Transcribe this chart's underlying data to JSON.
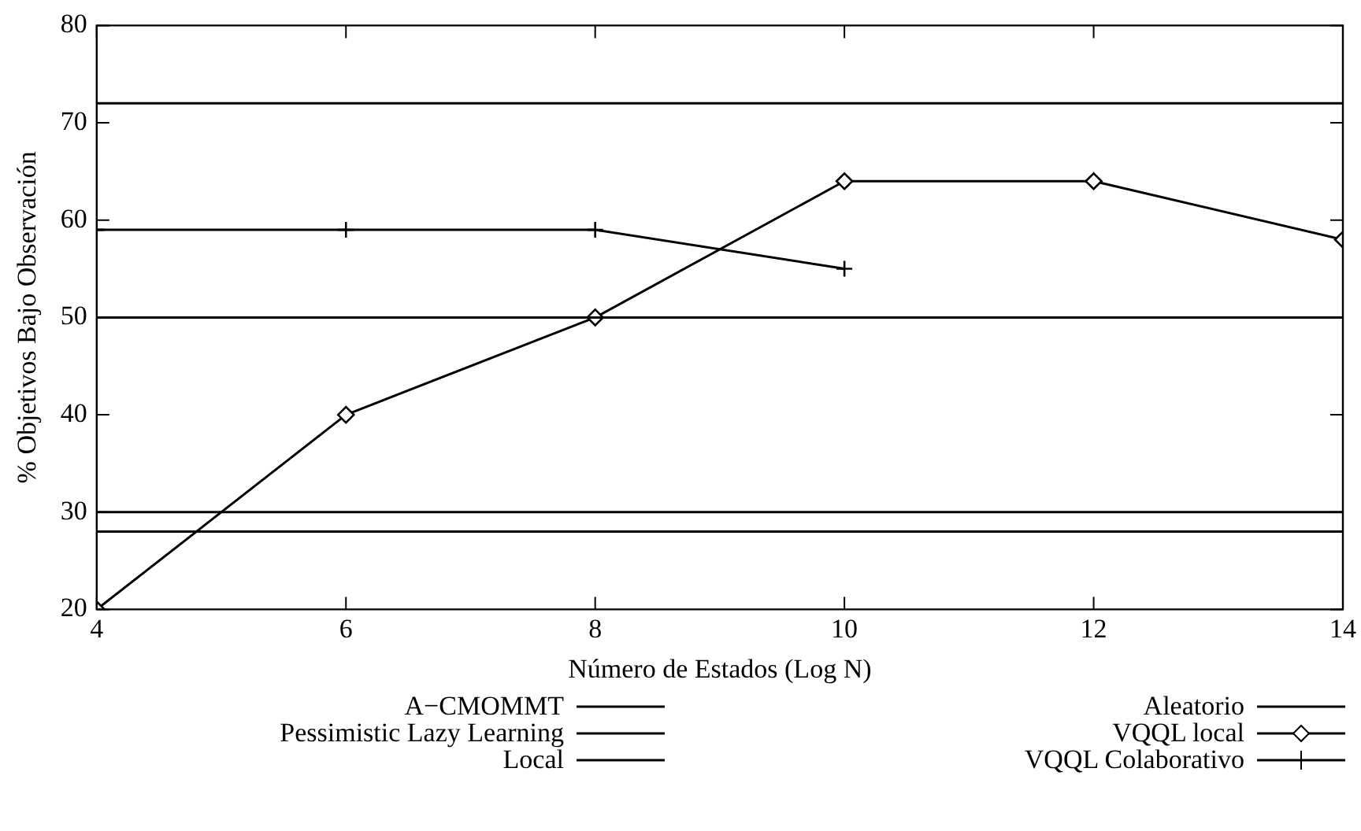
{
  "chart_data": {
    "type": "line",
    "xlabel": "Número de Estados (Log N)",
    "ylabel": "% Objetivos Bajo Observación",
    "xlim": [
      4,
      14
    ],
    "xticks": [
      4,
      6,
      8,
      10,
      12,
      14
    ],
    "ylim": [
      20,
      80
    ],
    "yticks": [
      20,
      30,
      40,
      50,
      60,
      70,
      80
    ],
    "grid": false,
    "legend": "bottom",
    "series": [
      {
        "name": "A−CMOMMT",
        "color": "#000000",
        "x": [
          4,
          14
        ],
        "values": [
          72,
          72
        ],
        "marker": "none"
      },
      {
        "name": "Pessimistic Lazy Learning",
        "color": "#000000",
        "x": [
          4,
          14
        ],
        "values": [
          30,
          30
        ],
        "marker": "none"
      },
      {
        "name": "Local",
        "color": "#000000",
        "x": [
          4,
          14
        ],
        "values": [
          50,
          50
        ],
        "marker": "none"
      },
      {
        "name": "Aleatorio",
        "color": "#000000",
        "x": [
          4,
          14
        ],
        "values": [
          28,
          28
        ],
        "marker": "none"
      },
      {
        "name": "VQQL local",
        "color": "#000000",
        "x": [
          4,
          6,
          8,
          10,
          12,
          14
        ],
        "values": [
          20,
          40,
          50,
          64,
          64,
          58
        ],
        "marker": "diamond"
      },
      {
        "name": "VQQL Colaborativo",
        "color": "#000000",
        "x": [
          4,
          6,
          8,
          10
        ],
        "values": [
          59,
          59,
          59,
          55
        ],
        "marker": "cross"
      }
    ]
  }
}
